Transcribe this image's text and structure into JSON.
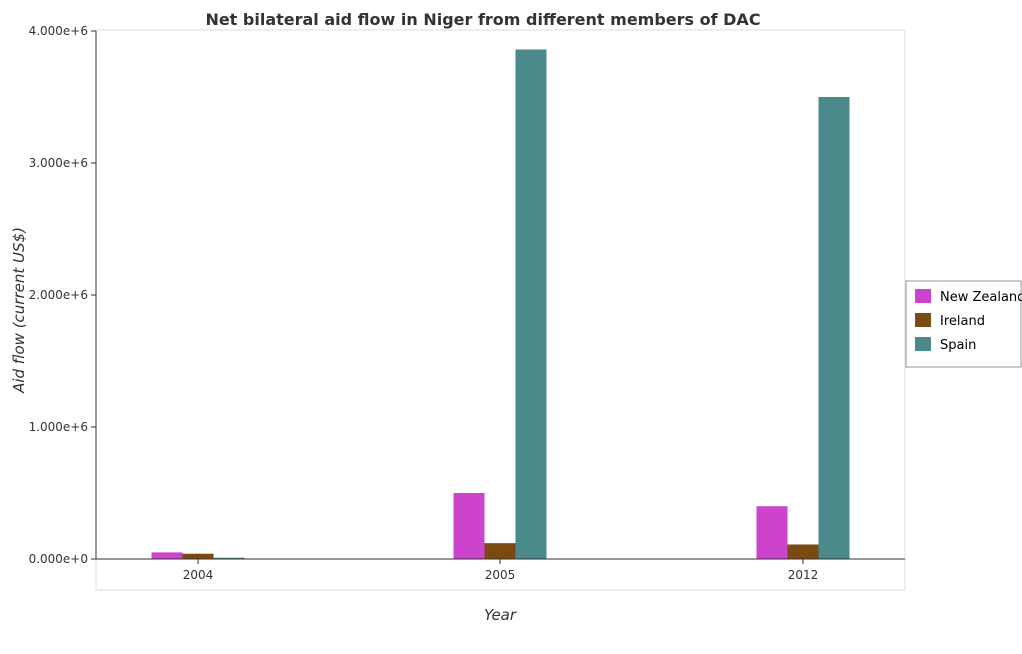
{
  "chart_data": {
    "type": "bar",
    "title": "Net bilateral aid flow in Niger from different members of DAC",
    "xlabel": "Year",
    "ylabel": "Aid flow (current US$)",
    "categories": [
      "2004",
      "2005",
      "2012"
    ],
    "series": [
      {
        "name": "New Zealand",
        "color": "#cc44cc",
        "values": [
          50000,
          500000,
          400000
        ]
      },
      {
        "name": "Ireland",
        "color": "#7b4a12",
        "values": [
          40000,
          120000,
          110000
        ]
      },
      {
        "name": "Spain",
        "color": "#4a8a8a",
        "values": [
          10000,
          3860000,
          3500000
        ]
      }
    ],
    "ylim": [
      0,
      4000000
    ],
    "yticks": [
      0,
      1000000,
      2000000,
      3000000,
      4000000
    ],
    "ytick_labels": [
      "0.000e+0",
      "1.000e+6",
      "2.000e+6",
      "3.000e+6",
      "4.000e+6"
    ],
    "legend_position": "right",
    "grid": false
  }
}
